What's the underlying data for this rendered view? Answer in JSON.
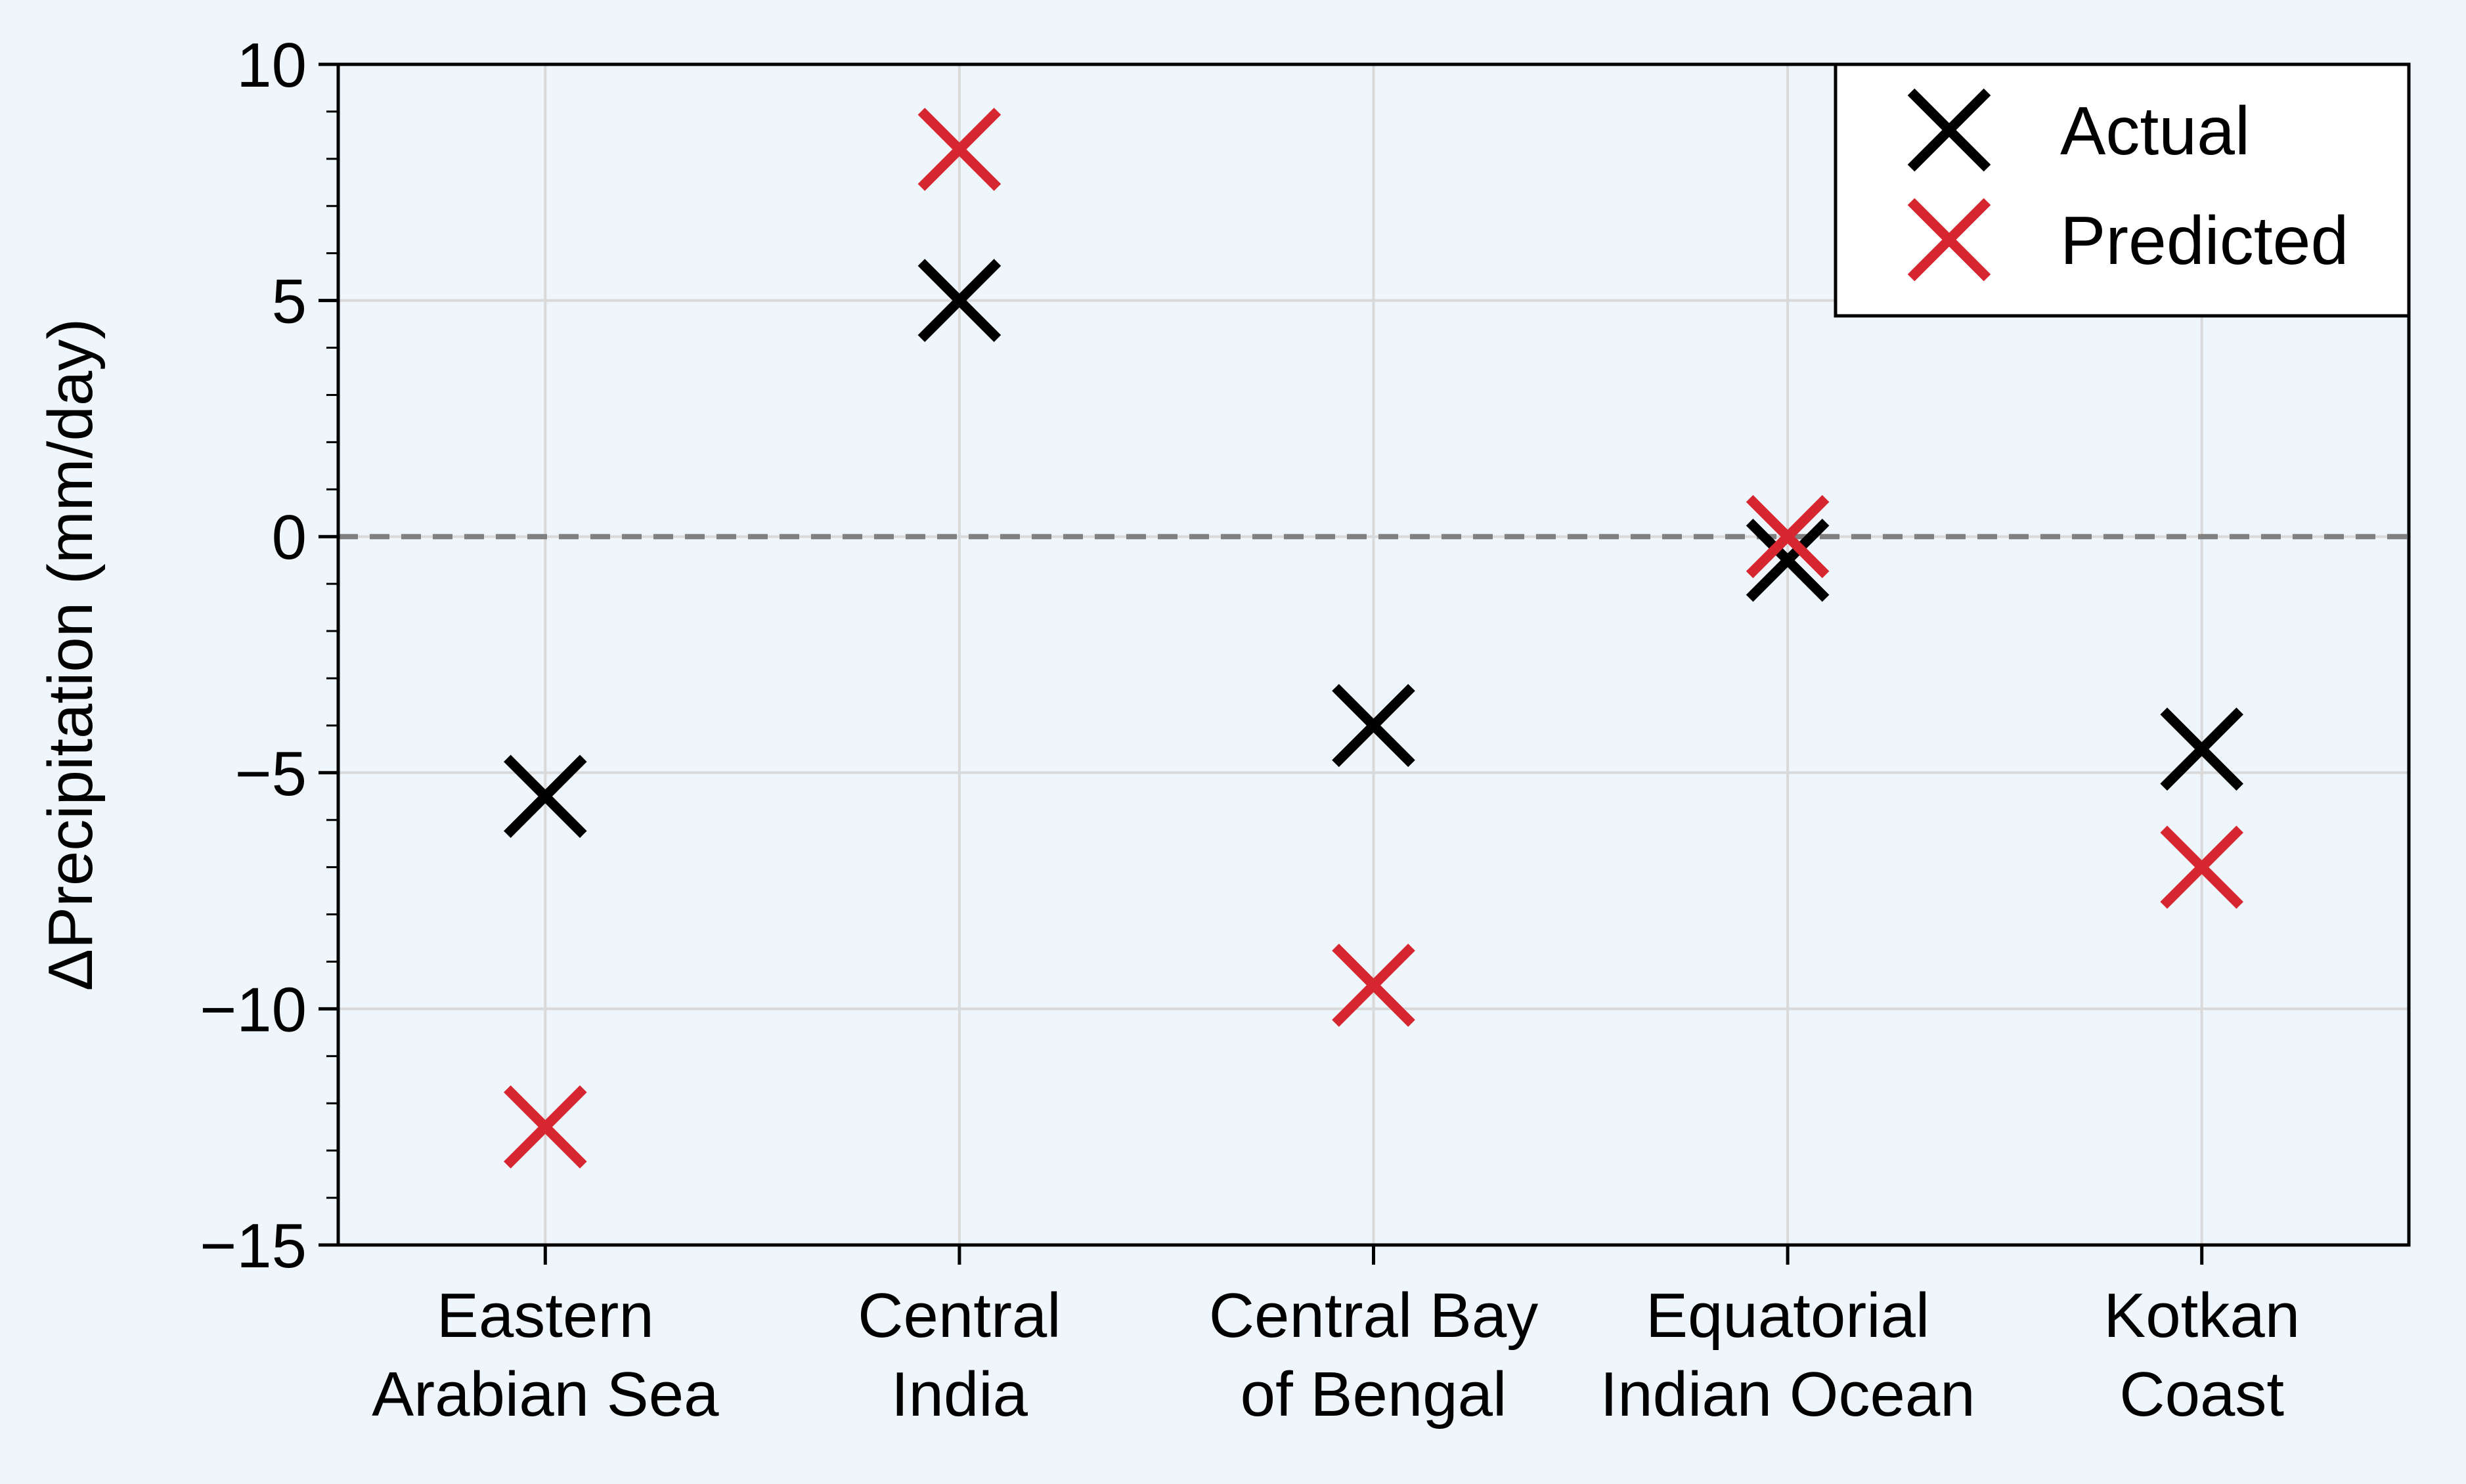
{
  "chart_data": {
    "type": "scatter",
    "categories": [
      [
        "Eastern",
        "Arabian Sea"
      ],
      [
        "Central",
        "India"
      ],
      [
        "Central Bay",
        "of Bengal"
      ],
      [
        "Equatorial",
        "Indian Ocean"
      ],
      [
        "Kotkan",
        "Coast"
      ]
    ],
    "series": [
      {
        "name": "Actual",
        "color": "#000000",
        "marker": "x",
        "values": [
          -5.5,
          5.0,
          -4.0,
          -0.5,
          -4.5
        ]
      },
      {
        "name": "Predicted",
        "color": "#d62730",
        "marker": "x",
        "values": [
          -12.5,
          8.2,
          -9.5,
          0.0,
          -7.0
        ]
      }
    ],
    "ylabel": "ΔPrecipitation (mm/day)",
    "xlabel": "",
    "ylim": [
      -15,
      10
    ],
    "yticks": [
      -15,
      -10,
      -5,
      0,
      5,
      10
    ],
    "ytick_labels": [
      "−15",
      "−10",
      "−5",
      "0",
      "5",
      "10"
    ],
    "yminor_step": 1,
    "reference_line": {
      "y": 0,
      "style": "dashed",
      "color": "#808080"
    },
    "grid": true,
    "legend_position": "top-right"
  }
}
